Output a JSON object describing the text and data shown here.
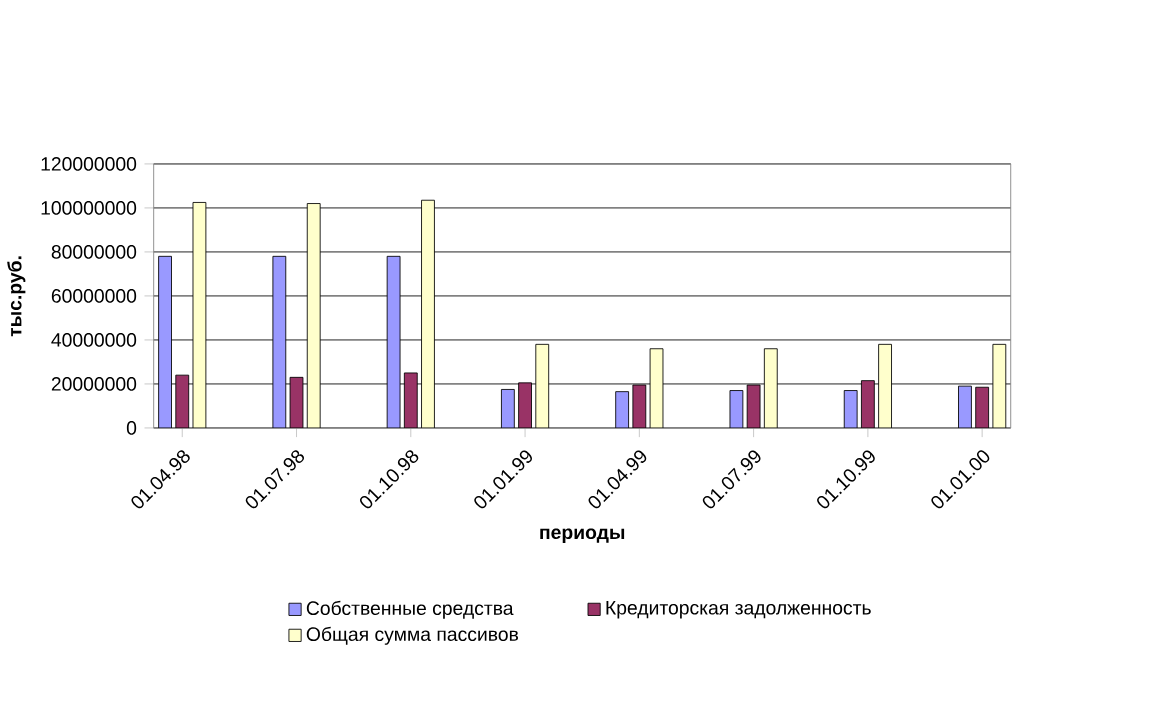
{
  "chart_data": {
    "type": "bar",
    "xlabel": "периоды",
    "ylabel": "тыс.руб.",
    "categories": [
      "01.04.98",
      "01.07.98",
      "01.10.98",
      "01.01.99",
      "01.04.99",
      "01.07.99",
      "01.10.99",
      "01.01.00"
    ],
    "series": [
      {
        "name": "Собственные средства",
        "color": "#9999ff",
        "values": [
          78000000,
          78000000,
          78000000,
          17500000,
          16500000,
          17000000,
          17000000,
          19000000
        ]
      },
      {
        "name": "Кредиторская задолженность",
        "color": "#993366",
        "values": [
          24000000,
          23000000,
          25000000,
          20500000,
          19500000,
          19500000,
          21500000,
          18500000
        ]
      },
      {
        "name": "Общая сумма пассивов",
        "color": "#ffffcc",
        "values": [
          102500000,
          102000000,
          103500000,
          38000000,
          36000000,
          36000000,
          38000000,
          38000000
        ]
      }
    ],
    "ylim": [
      0,
      120000000
    ],
    "yticks": [
      0,
      20000000,
      40000000,
      60000000,
      80000000,
      100000000,
      120000000
    ],
    "grid": "y",
    "legend": "bottom"
  }
}
